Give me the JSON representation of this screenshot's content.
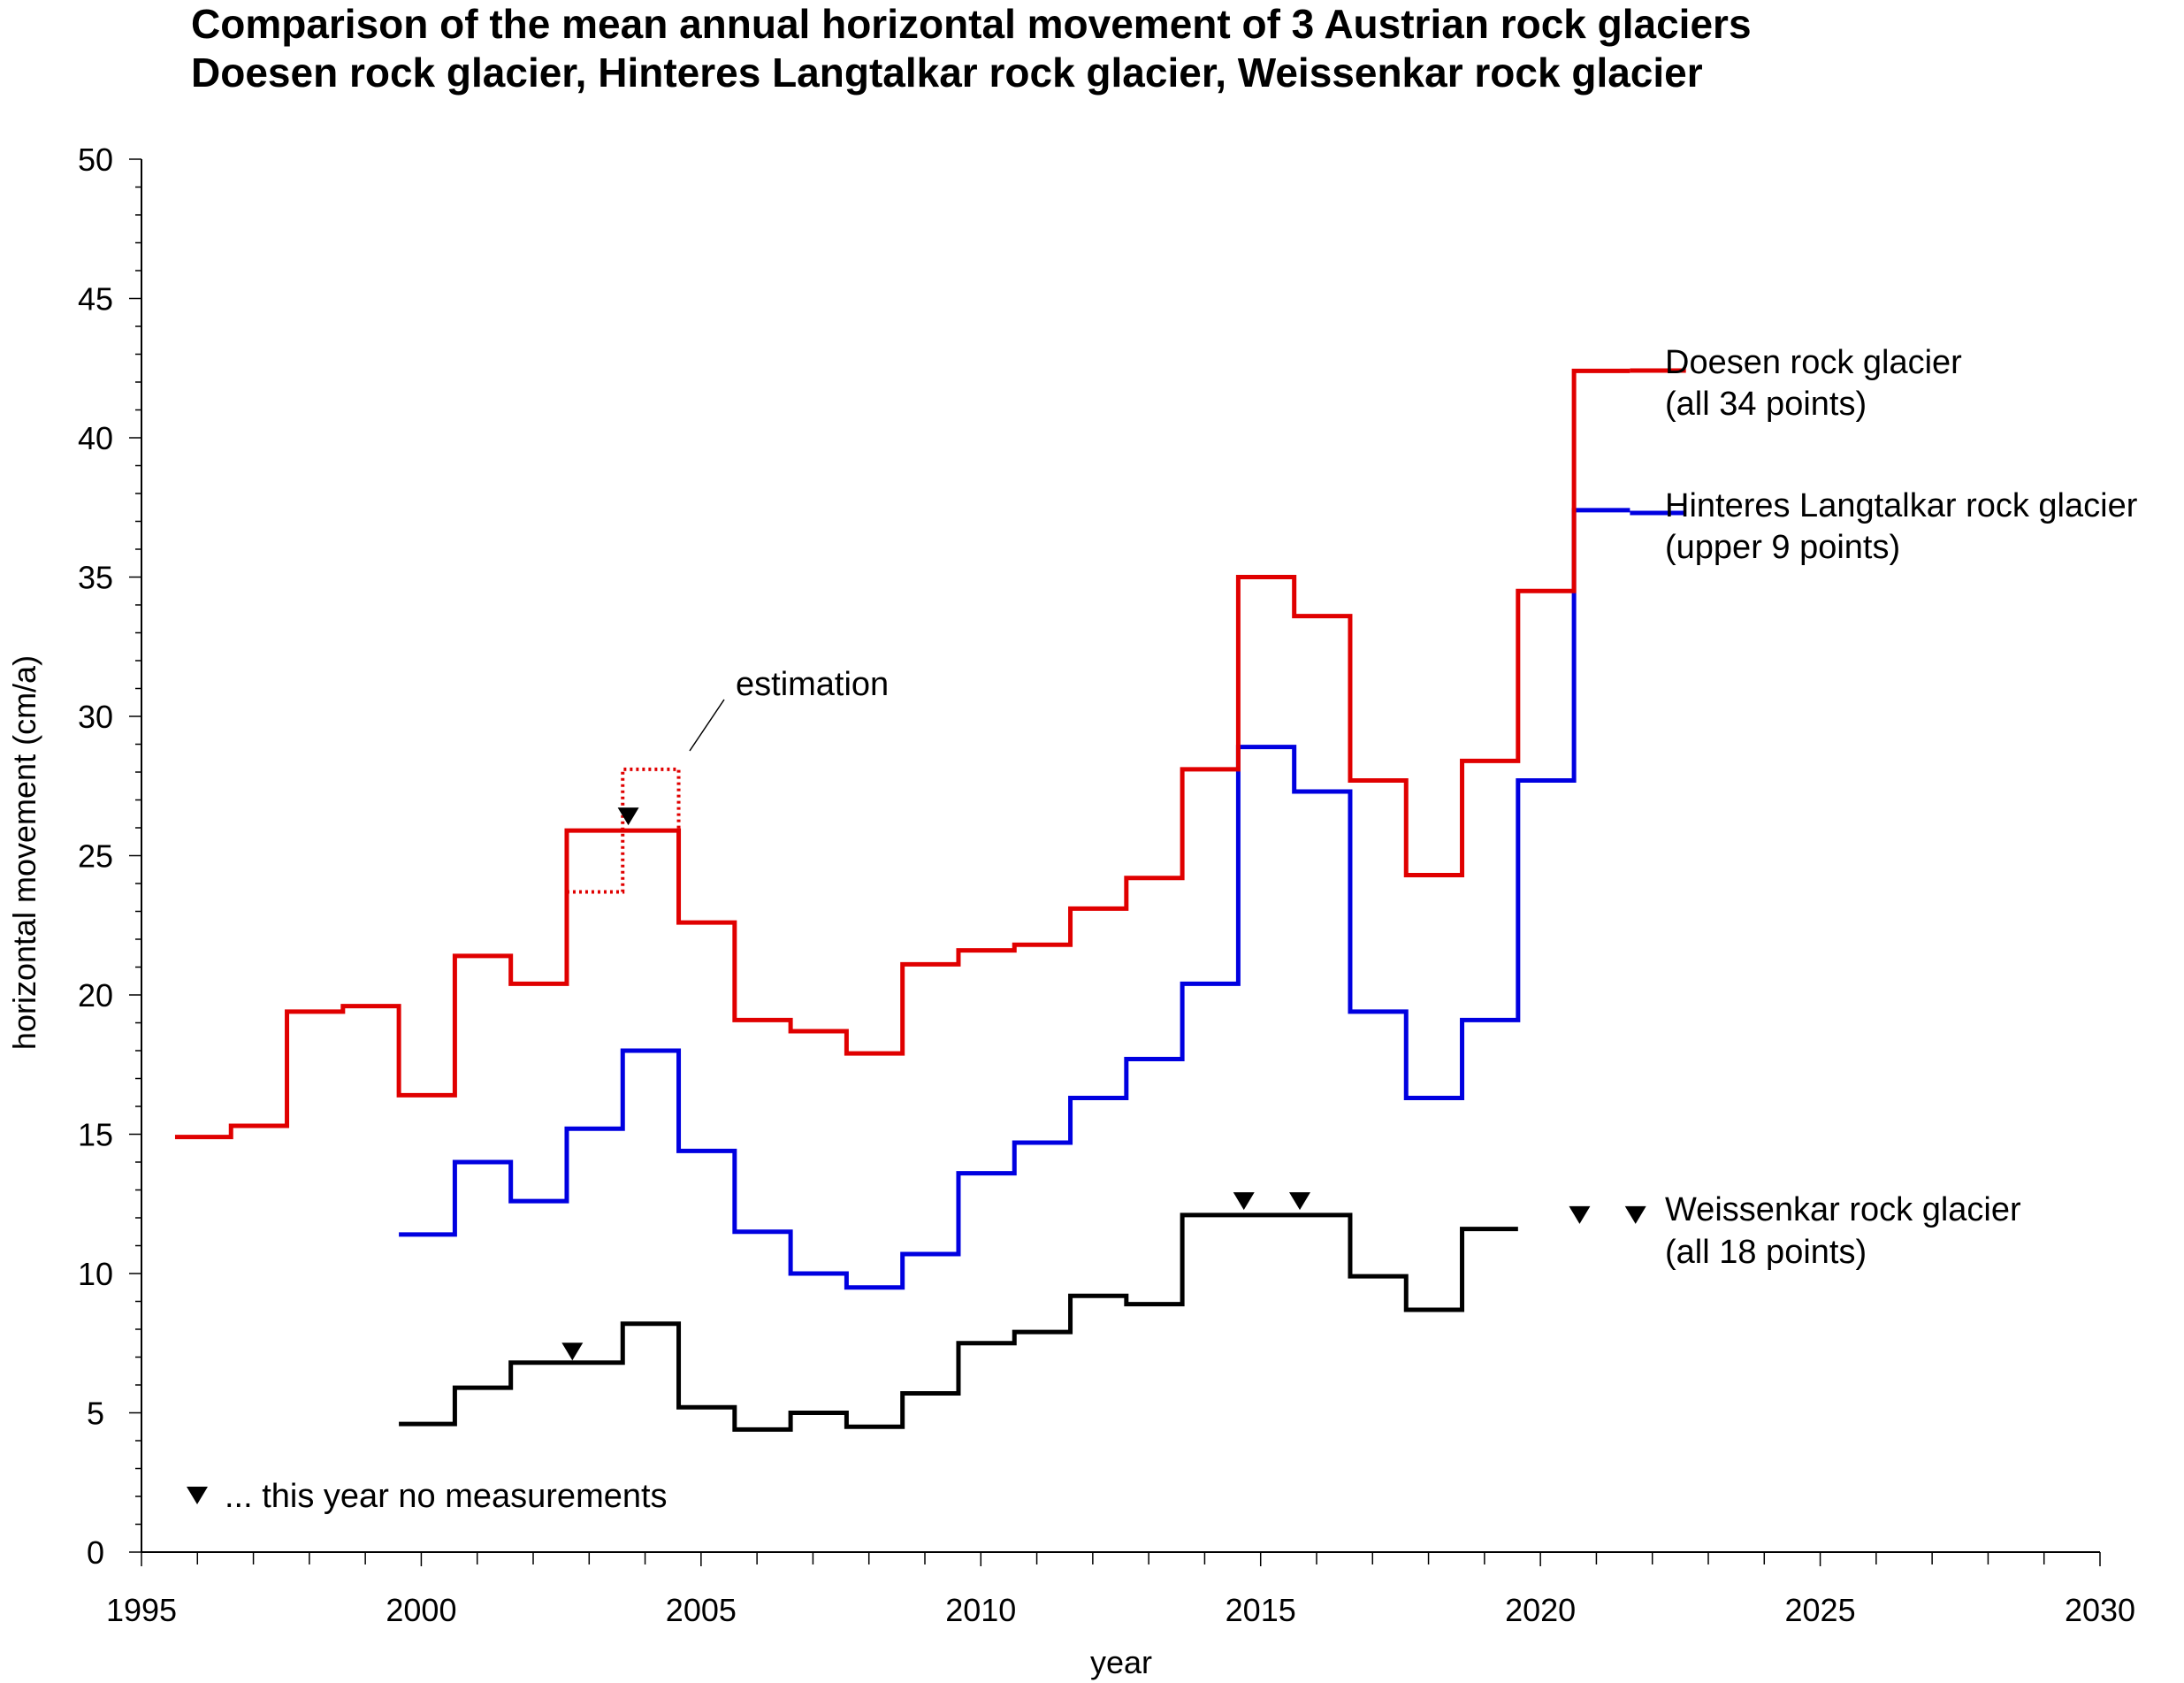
{
  "title_line1": "Comparison of the mean annual horizontal movement of 3 Austrian rock glaciers",
  "title_line2": "Doesen rock glacier, Hinteres Langtalkar rock glacier, Weissenkar rock glacier",
  "annotations": {
    "estimation": "estimation",
    "no_measurements_note": "... this year no measurements"
  },
  "colors": {
    "doesen": "#e00000",
    "hinteres": "#0000e0",
    "weissenkar": "#000000"
  },
  "chart_data": {
    "type": "line",
    "step": true,
    "title": "Comparison of the mean annual horizontal movement of 3 Austrian rock glaciers",
    "subtitle": "Doesen rock glacier, Hinteres Langtalkar rock glacier, Weissenkar rock glacier",
    "xlabel": "year",
    "ylabel": "horizontal movement (cm/a)",
    "xlim": [
      1995,
      2030
    ],
    "ylim": [
      0,
      50
    ],
    "x_ticks": [
      1995,
      2000,
      2005,
      2010,
      2015,
      2020,
      2025,
      2030
    ],
    "y_ticks": [
      0,
      5,
      10,
      15,
      20,
      25,
      30,
      35,
      40,
      45,
      50
    ],
    "grid": false,
    "series": [
      {
        "name": "Doesen rock glacier",
        "legend_line2": "(all 34 points)",
        "color": "#e00000",
        "periods": [
          {
            "from": 1995.6,
            "to": 1996.6,
            "value": 14.9
          },
          {
            "from": 1996.6,
            "to": 1997.6,
            "value": 15.3
          },
          {
            "from": 1997.6,
            "to": 1998.6,
            "value": 19.4
          },
          {
            "from": 1998.6,
            "to": 1999.6,
            "value": 19.6
          },
          {
            "from": 1999.6,
            "to": 2000.6,
            "value": 16.4
          },
          {
            "from": 2000.6,
            "to": 2001.6,
            "value": 21.4
          },
          {
            "from": 2001.6,
            "to": 2002.6,
            "value": 20.4
          },
          {
            "from": 2002.6,
            "to": 2004.6,
            "value": 25.9
          },
          {
            "from": 2004.6,
            "to": 2005.6,
            "value": 22.6
          },
          {
            "from": 2005.6,
            "to": 2006.6,
            "value": 19.1
          },
          {
            "from": 2006.6,
            "to": 2007.6,
            "value": 18.7
          },
          {
            "from": 2007.6,
            "to": 2008.6,
            "value": 17.9
          },
          {
            "from": 2008.6,
            "to": 2009.6,
            "value": 21.1
          },
          {
            "from": 2009.6,
            "to": 2010.6,
            "value": 21.6
          },
          {
            "from": 2010.6,
            "to": 2011.6,
            "value": 21.8
          },
          {
            "from": 2011.6,
            "to": 2012.6,
            "value": 23.1
          },
          {
            "from": 2012.6,
            "to": 2013.6,
            "value": 24.2
          },
          {
            "from": 2013.6,
            "to": 2014.6,
            "value": 28.1
          },
          {
            "from": 2014.6,
            "to": 2015.6,
            "value": 35.0
          },
          {
            "from": 2015.6,
            "to": 2016.6,
            "value": 33.6
          },
          {
            "from": 2016.6,
            "to": 2017.6,
            "value": 27.7
          },
          {
            "from": 2017.6,
            "to": 2018.6,
            "value": 24.3
          },
          {
            "from": 2018.6,
            "to": 2019.6,
            "value": 28.4
          },
          {
            "from": 2019.6,
            "to": 2020.6,
            "value": 34.5
          },
          {
            "from": 2020.6,
            "to": 2021.6,
            "value": 42.4
          }
        ],
        "estimation": [
          {
            "from": 2002.6,
            "to": 2003.6,
            "value": 23.7
          },
          {
            "from": 2003.6,
            "to": 2004.6,
            "value": 28.1
          }
        ],
        "no_measurement_years": [
          2003.7
        ]
      },
      {
        "name": "Hinteres Langtalkar rock glacier",
        "legend_line2": "(upper 9 points)",
        "color": "#0000e0",
        "periods": [
          {
            "from": 1999.6,
            "to": 2000.6,
            "value": 11.4
          },
          {
            "from": 2000.6,
            "to": 2001.6,
            "value": 14.0
          },
          {
            "from": 2001.6,
            "to": 2002.6,
            "value": 12.6
          },
          {
            "from": 2002.6,
            "to": 2003.6,
            "value": 15.2
          },
          {
            "from": 2003.6,
            "to": 2004.6,
            "value": 18.0
          },
          {
            "from": 2004.6,
            "to": 2005.6,
            "value": 14.4
          },
          {
            "from": 2005.6,
            "to": 2006.6,
            "value": 11.5
          },
          {
            "from": 2006.6,
            "to": 2007.6,
            "value": 10.0
          },
          {
            "from": 2007.6,
            "to": 2008.6,
            "value": 9.5
          },
          {
            "from": 2008.6,
            "to": 2009.6,
            "value": 10.7
          },
          {
            "from": 2009.6,
            "to": 2010.6,
            "value": 13.6
          },
          {
            "from": 2010.6,
            "to": 2011.6,
            "value": 14.7
          },
          {
            "from": 2011.6,
            "to": 2012.6,
            "value": 16.3
          },
          {
            "from": 2012.6,
            "to": 2013.6,
            "value": 17.7
          },
          {
            "from": 2013.6,
            "to": 2014.6,
            "value": 20.4
          },
          {
            "from": 2014.6,
            "to": 2015.6,
            "value": 28.9
          },
          {
            "from": 2015.6,
            "to": 2016.6,
            "value": 27.3
          },
          {
            "from": 2016.6,
            "to": 2017.6,
            "value": 19.4
          },
          {
            "from": 2017.6,
            "to": 2018.6,
            "value": 16.3
          },
          {
            "from": 2018.6,
            "to": 2019.6,
            "value": 19.1
          },
          {
            "from": 2019.6,
            "to": 2020.6,
            "value": 27.7
          },
          {
            "from": 2020.6,
            "to": 2021.6,
            "value": 37.4
          }
        ]
      },
      {
        "name": "Weissenkar rock glacier",
        "legend_line2": "(all 18 points)",
        "color": "#000000",
        "periods": [
          {
            "from": 1999.6,
            "to": 2000.6,
            "value": 4.6
          },
          {
            "from": 2000.6,
            "to": 2001.6,
            "value": 5.9
          },
          {
            "from": 2001.6,
            "to": 2003.6,
            "value": 6.8
          },
          {
            "from": 2003.6,
            "to": 2004.6,
            "value": 8.2
          },
          {
            "from": 2004.6,
            "to": 2005.6,
            "value": 5.2
          },
          {
            "from": 2005.6,
            "to": 2006.6,
            "value": 4.4
          },
          {
            "from": 2006.6,
            "to": 2007.6,
            "value": 5.0
          },
          {
            "from": 2007.6,
            "to": 2008.6,
            "value": 4.5
          },
          {
            "from": 2008.6,
            "to": 2009.6,
            "value": 5.7
          },
          {
            "from": 2009.6,
            "to": 2010.6,
            "value": 7.5
          },
          {
            "from": 2010.6,
            "to": 2011.6,
            "value": 7.9
          },
          {
            "from": 2011.6,
            "to": 2012.6,
            "value": 9.2
          },
          {
            "from": 2012.6,
            "to": 2013.6,
            "value": 8.9
          },
          {
            "from": 2013.6,
            "to": 2016.6,
            "value": 12.1
          },
          {
            "from": 2016.6,
            "to": 2017.6,
            "value": 9.9
          },
          {
            "from": 2017.6,
            "to": 2018.6,
            "value": 8.7
          },
          {
            "from": 2018.6,
            "to": 2019.6,
            "value": 11.6
          }
        ],
        "no_measurement_markers": [
          {
            "year": 2002.7,
            "value": 7.2
          },
          {
            "year": 2014.7,
            "value": 12.6
          },
          {
            "year": 2015.7,
            "value": 12.6
          },
          {
            "year": 2020.7,
            "value": 12.1
          },
          {
            "year": 2021.7,
            "value": 12.1
          }
        ]
      }
    ]
  }
}
